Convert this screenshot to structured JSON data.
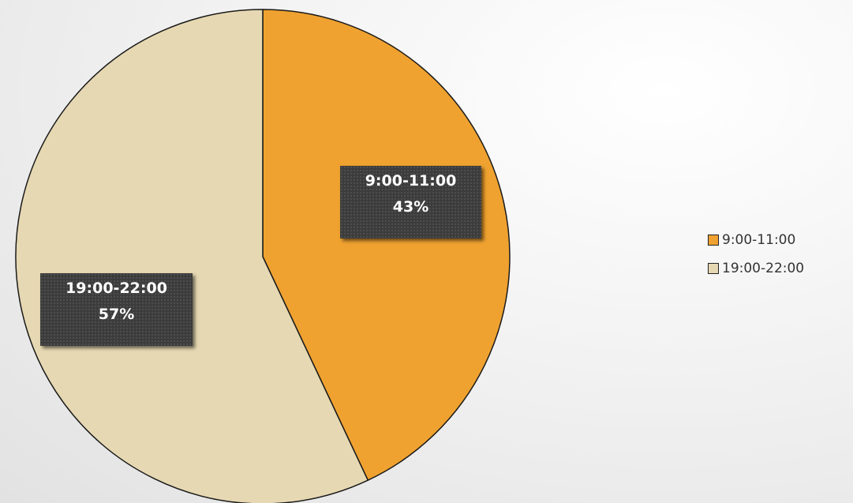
{
  "chart_data": {
    "type": "pie",
    "categories": [
      "9:00-11:00",
      "19:00-22:00"
    ],
    "values": [
      43,
      57
    ],
    "data_labels": [
      {
        "category": "9:00-11:00",
        "percent": "43%"
      },
      {
        "category": "19:00-22:00",
        "percent": "57%"
      }
    ],
    "colors": [
      "#efa230",
      "#e6d8b2"
    ],
    "start_angle": "12 o'clock",
    "direction": "clockwise",
    "legend_position": "right",
    "title": "",
    "grid": false
  },
  "legend": {
    "items": [
      {
        "label": "9:00-11:00",
        "color": "#efa230"
      },
      {
        "label": "19:00-22:00",
        "color": "#e6d8b2"
      }
    ]
  }
}
